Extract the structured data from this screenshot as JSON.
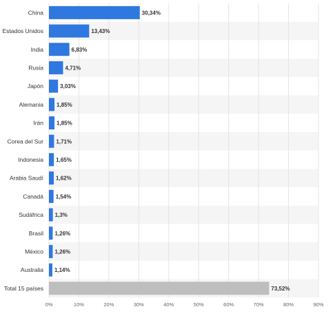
{
  "chart_data": {
    "type": "bar",
    "orientation": "horizontal",
    "categories": [
      "China",
      "Estados Unidos",
      "India",
      "Rusia",
      "Japón",
      "Alemania",
      "Irán",
      "Corea del Sur",
      "Indonesia",
      "Arabia Saudí",
      "Canadá",
      "Sudáfrica",
      "Brasil",
      "México",
      "Australia",
      "Total 15 países"
    ],
    "values": [
      30.34,
      13.43,
      6.83,
      4.71,
      3.03,
      1.85,
      1.85,
      1.71,
      1.65,
      1.62,
      1.54,
      1.3,
      1.26,
      1.26,
      1.14,
      73.52
    ],
    "value_labels": [
      "30,34%",
      "13,43%",
      "6,83%",
      "4,71%",
      "3,03%",
      "1,85%",
      "1,85%",
      "1,71%",
      "1,65%",
      "1,62%",
      "1,54%",
      "1,3%",
      "1,26%",
      "1,26%",
      "1,14%",
      "73,52%"
    ],
    "xlim": [
      0,
      90
    ],
    "x_ticks": [
      0,
      10,
      20,
      30,
      40,
      50,
      60,
      70,
      80,
      90
    ],
    "x_tick_labels": [
      "0%",
      "10%",
      "20%",
      "30%",
      "40%",
      "50%",
      "60%",
      "70%",
      "80%",
      "90%"
    ],
    "xlabel": "",
    "title": "",
    "grid": true,
    "colors": {
      "bar": "#2f78e0",
      "total_bar": "#bebebe",
      "band": "#f5f5f5",
      "grid": "#e4e4e4"
    }
  }
}
